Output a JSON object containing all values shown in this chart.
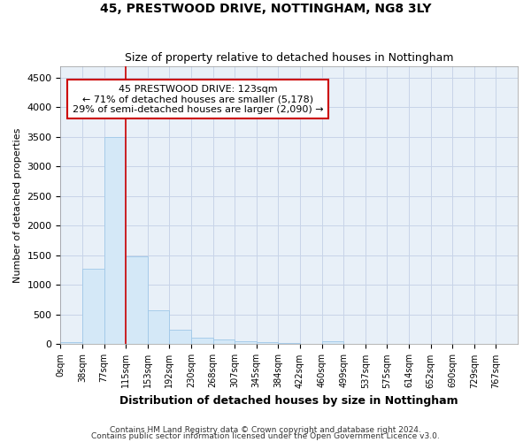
{
  "title1": "45, PRESTWOOD DRIVE, NOTTINGHAM, NG8 3LY",
  "title2": "Size of property relative to detached houses in Nottingham",
  "xlabel": "Distribution of detached houses by size in Nottingham",
  "ylabel": "Number of detached properties",
  "bar_color": "#d4e8f7",
  "bar_edgecolor": "#a0c8e8",
  "grid_color": "#c8d4e8",
  "background_color": "#e8f0f8",
  "bin_labels": [
    "0sqm",
    "38sqm",
    "77sqm",
    "115sqm",
    "153sqm",
    "192sqm",
    "230sqm",
    "268sqm",
    "307sqm",
    "345sqm",
    "384sqm",
    "422sqm",
    "460sqm",
    "499sqm",
    "537sqm",
    "575sqm",
    "614sqm",
    "652sqm",
    "690sqm",
    "729sqm",
    "767sqm"
  ],
  "bar_heights": [
    40,
    1280,
    3500,
    1480,
    575,
    240,
    115,
    80,
    55,
    40,
    25,
    0,
    55,
    0,
    0,
    0,
    0,
    0,
    0,
    0,
    0
  ],
  "ylim": [
    0,
    4700
  ],
  "yticks": [
    0,
    500,
    1000,
    1500,
    2000,
    2500,
    3000,
    3500,
    4000,
    4500
  ],
  "vline_bin": 3,
  "annotation_line1": "45 PRESTWOOD DRIVE: 123sqm",
  "annotation_line2": "← 71% of detached houses are smaller (5,178)",
  "annotation_line3": "29% of semi-detached houses are larger (2,090) →",
  "annotation_box_color": "#ffffff",
  "annotation_box_edgecolor": "#cc0000",
  "vline_color": "#cc0000",
  "footnote1": "Contains HM Land Registry data © Crown copyright and database right 2024.",
  "footnote2": "Contains public sector information licensed under the Open Government Licence v3.0."
}
